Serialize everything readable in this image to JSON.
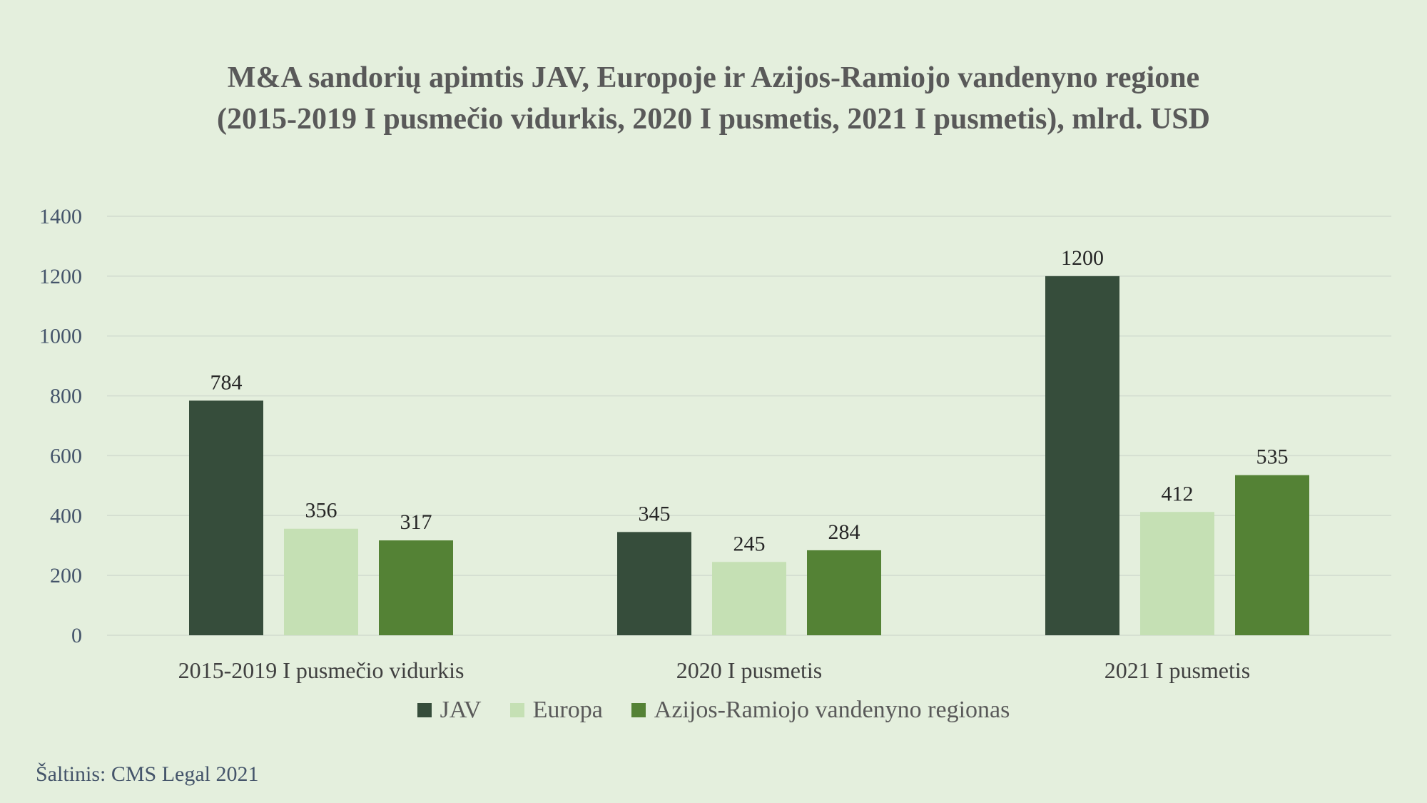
{
  "chart_data": {
    "type": "bar",
    "title_lines": [
      "M&A sandorių apimtis JAV, Europoje ir Azijos-Ramiojo vandenyno regione",
      "(2015-2019 I pusmečio vidurkis, 2020 I pusmetis, 2021 I pusmetis), mlrd. USD"
    ],
    "categories": [
      "2015-2019 I pusmečio vidurkis",
      "2020 I pusmetis",
      "2021 I pusmetis"
    ],
    "series": [
      {
        "name": "JAV",
        "color": "#364d3b",
        "values": [
          784,
          345,
          1200
        ]
      },
      {
        "name": "Europa",
        "color": "#c5e0b4",
        "values": [
          356,
          245,
          412
        ]
      },
      {
        "name": "Azijos-Ramiojo vandenyno regionas",
        "color": "#548235",
        "values": [
          317,
          284,
          535
        ]
      }
    ],
    "ylim": [
      0,
      1400
    ],
    "yticks": [
      "0",
      "200",
      "400",
      "600",
      "800",
      "1000",
      "1200",
      "1400"
    ],
    "grid": true,
    "legend_position": "bottom",
    "xlabel": "",
    "ylabel": ""
  },
  "source_text": "Šaltinis: CMS Legal 2021"
}
